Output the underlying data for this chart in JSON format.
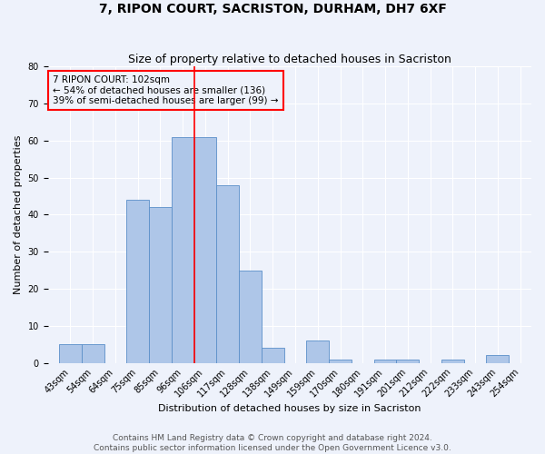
{
  "title": "7, RIPON COURT, SACRISTON, DURHAM, DH7 6XF",
  "subtitle": "Size of property relative to detached houses in Sacriston",
  "xlabel": "Distribution of detached houses by size in Sacriston",
  "ylabel": "Number of detached properties",
  "footer_line1": "Contains HM Land Registry data © Crown copyright and database right 2024.",
  "footer_line2": "Contains public sector information licensed under the Open Government Licence v3.0.",
  "bar_labels": [
    "43sqm",
    "54sqm",
    "64sqm",
    "75sqm",
    "85sqm",
    "96sqm",
    "106sqm",
    "117sqm",
    "128sqm",
    "138sqm",
    "149sqm",
    "159sqm",
    "170sqm",
    "180sqm",
    "191sqm",
    "201sqm",
    "212sqm",
    "222sqm",
    "233sqm",
    "243sqm",
    "254sqm"
  ],
  "bar_values": [
    5,
    5,
    0,
    44,
    42,
    61,
    61,
    48,
    25,
    4,
    0,
    6,
    1,
    0,
    1,
    1,
    0,
    1,
    0,
    2,
    0
  ],
  "bar_color": "#aec6e8",
  "bar_edgecolor": "#5b8fc9",
  "property_line_color": "red",
  "annotation_text": "7 RIPON COURT: 102sqm\n← 54% of detached houses are smaller (136)\n39% of semi-detached houses are larger (99) →",
  "annotation_box_color": "red",
  "ylim": [
    0,
    80
  ],
  "yticks": [
    0,
    10,
    20,
    30,
    40,
    50,
    60,
    70,
    80
  ],
  "background_color": "#eef2fb",
  "grid_color": "#ffffff",
  "title_fontsize": 10,
  "subtitle_fontsize": 9,
  "axis_label_fontsize": 8,
  "tick_fontsize": 7,
  "annotation_fontsize": 7.5,
  "footer_fontsize": 6.5
}
